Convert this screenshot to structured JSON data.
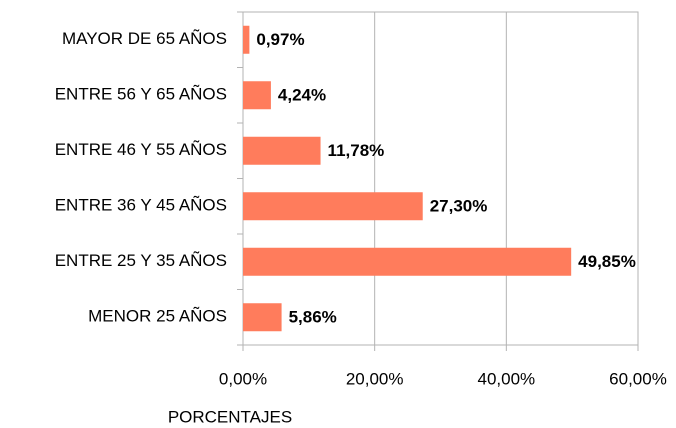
{
  "chart_data": {
    "type": "bar",
    "orientation": "horizontal",
    "x_label": "PORCENTAJES",
    "categories": [
      "MAYOR DE 65 AÑOS",
      "ENTRE 56 Y 65 AÑOS",
      "ENTRE 46 Y 55 AÑOS",
      "ENTRE 36 Y 45 AÑOS",
      "ENTRE 25 Y 35 AÑOS",
      "MENOR 25 AÑOS"
    ],
    "values": [
      0.97,
      4.24,
      11.78,
      27.3,
      49.85,
      5.86
    ],
    "value_labels": [
      "0,97%",
      "4,24%",
      "11,78%",
      "27,30%",
      "49,85%",
      "5,86%"
    ],
    "color": "#ff7c5c",
    "xlim": [
      0,
      60
    ],
    "xticks": [
      {
        "value": 0,
        "label": "0,00%"
      },
      {
        "value": 20,
        "label": "20,00%"
      },
      {
        "value": 40,
        "label": "40,00%"
      },
      {
        "value": 60,
        "label": "60,00%"
      }
    ],
    "grid": true
  }
}
